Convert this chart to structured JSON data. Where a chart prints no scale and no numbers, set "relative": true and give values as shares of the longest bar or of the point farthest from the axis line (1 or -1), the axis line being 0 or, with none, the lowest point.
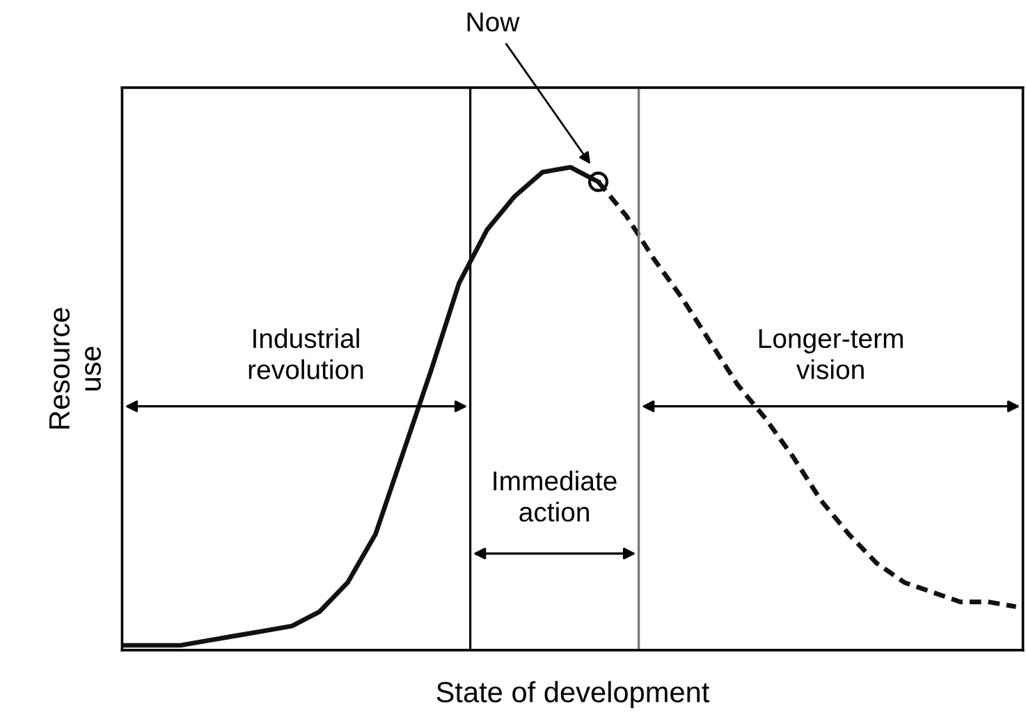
{
  "chart_data": {
    "type": "line",
    "relative": true,
    "xlabel": "State of development",
    "ylabel": "Resource\nuse",
    "categories": [
      null,
      null,
      null,
      null,
      null,
      null,
      null,
      null,
      null,
      null,
      null,
      null,
      null,
      null,
      null,
      null,
      null,
      null,
      null,
      null,
      null,
      null,
      null,
      null,
      null,
      null,
      null,
      null,
      null,
      null,
      null,
      null,
      null
    ],
    "series": [
      {
        "color": "#111111",
        "line_style": "solid",
        "values": [
          0.01,
          0.01,
          0.01,
          0.02,
          0.03,
          0.04,
          0.05,
          0.08,
          0.14,
          0.24,
          0.41,
          0.58,
          0.76,
          0.87,
          0.94,
          0.99,
          1.0,
          0.97,
          null,
          null,
          null,
          null,
          null,
          null,
          null,
          null,
          null,
          null,
          null,
          null,
          null,
          null,
          null
        ]
      },
      {
        "color": "#111111",
        "line_style": "dashed",
        "values": [
          null,
          null,
          null,
          null,
          null,
          null,
          null,
          null,
          null,
          null,
          null,
          null,
          null,
          null,
          null,
          null,
          null,
          0.97,
          0.9,
          0.81,
          0.73,
          0.64,
          0.55,
          0.48,
          0.4,
          0.31,
          0.24,
          0.18,
          0.14,
          0.12,
          0.1,
          0.1,
          0.09
        ]
      }
    ],
    "annotations": [
      "Now",
      "Industrial\nrevolution",
      "Immediate\naction",
      "Longer-term\nvision"
    ],
    "legend": false,
    "grid": false,
    "tick_labels": false,
    "marker": "none"
  }
}
